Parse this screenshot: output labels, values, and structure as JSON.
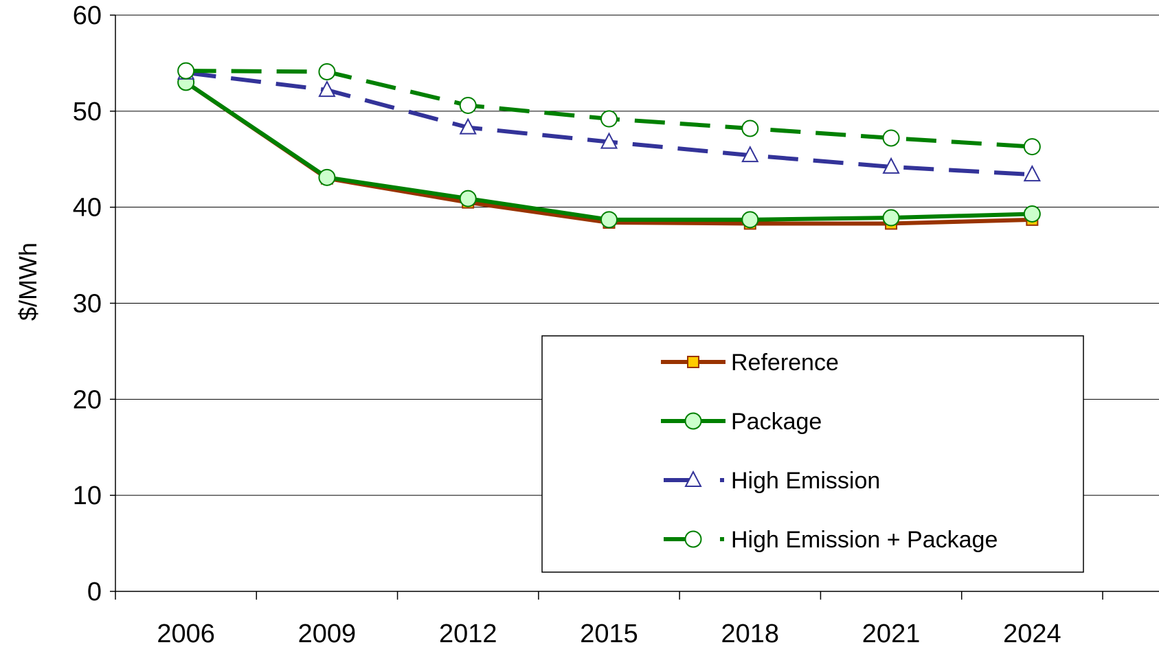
{
  "chart_data": {
    "type": "line",
    "title": "",
    "xlabel": "",
    "ylabel": "$/MWh",
    "categories": [
      "2006",
      "2009",
      "2012",
      "2015",
      "2018",
      "2021",
      "2024"
    ],
    "ylim": [
      0,
      60
    ],
    "yticks": [
      0,
      10,
      20,
      30,
      40,
      50,
      60
    ],
    "grid": "horizontal",
    "legend": "lower-right",
    "series": [
      {
        "name": "Reference",
        "values": [
          53.0,
          43.0,
          40.5,
          38.4,
          38.3,
          38.3,
          38.7
        ],
        "color": "#993300",
        "marker": "square",
        "marker_fill": "#ffcc00",
        "dashed": false
      },
      {
        "name": "Package",
        "values": [
          53.0,
          43.1,
          40.9,
          38.7,
          38.7,
          38.9,
          39.3
        ],
        "color": "#008000",
        "marker": "circle",
        "marker_fill": "#ccffcc",
        "dashed": false
      },
      {
        "name": "High Emission",
        "values": [
          54.0,
          52.2,
          48.3,
          46.8,
          45.4,
          44.2,
          43.4
        ],
        "color": "#333399",
        "marker": "triangle",
        "marker_fill": "#ffffff",
        "dashed": true
      },
      {
        "name": "High Emission + Package",
        "values": [
          54.2,
          54.1,
          50.6,
          49.2,
          48.2,
          47.2,
          46.3
        ],
        "color": "#008000",
        "marker": "circle",
        "marker_fill": "#ffffff",
        "dashed": true
      }
    ]
  }
}
